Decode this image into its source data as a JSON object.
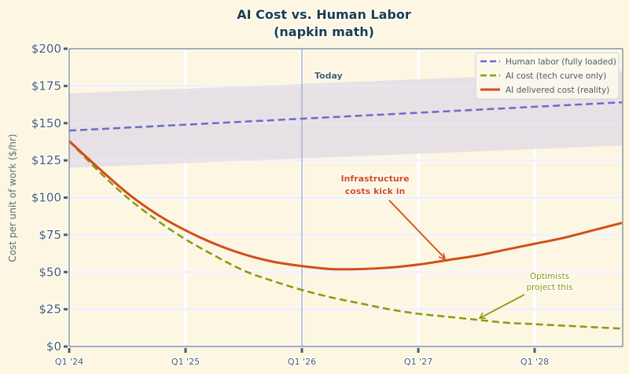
{
  "chart_data": {
    "type": "line",
    "title": "AI Cost vs. Human Labor",
    "subtitle": "(napkin math)",
    "xlabel": "",
    "ylabel": "Cost per unit of work ($/hr)",
    "ylim": [
      0,
      200
    ],
    "yticks": [
      "$0",
      "$25",
      "$50",
      "$75",
      "$100",
      "$125",
      "$150",
      "$175",
      "$200"
    ],
    "ytick_values": [
      0,
      25,
      50,
      75,
      100,
      125,
      150,
      175,
      200
    ],
    "xticks": [
      "Q1 '24",
      "Q1 '25",
      "Q1 '26",
      "Q1 '27",
      "Q1 '28"
    ],
    "x": [
      "Q1 '24",
      "Q2 '24",
      "Q3 '24",
      "Q4 '24",
      "Q1 '25",
      "Q2 '25",
      "Q3 '25",
      "Q4 '25",
      "Q1 '26",
      "Q2 '26",
      "Q3 '26",
      "Q4 '26",
      "Q1 '27",
      "Q2 '27",
      "Q3 '27",
      "Q4 '27",
      "Q1 '28",
      "Q2 '28",
      "Q3 '28",
      "Q4 '28"
    ],
    "grid": true,
    "legend_position": "upper right",
    "series": [
      {
        "name": "Human labor (fully loaded)",
        "style": "dashed",
        "color": "#6b6bc8",
        "values": [
          145,
          146,
          147,
          148,
          149,
          150,
          151,
          152,
          153,
          154,
          155,
          156,
          157,
          158,
          159,
          160,
          161,
          162,
          163,
          164
        ]
      },
      {
        "name": "AI cost (tech curve only)",
        "style": "dashed",
        "color": "#8a9a0a",
        "values": [
          138,
          118,
          100,
          85,
          72,
          61,
          51,
          44,
          38,
          33,
          29,
          25,
          22,
          20,
          18,
          16,
          15,
          14,
          13,
          12
        ]
      },
      {
        "name": "AI delivered cost (reality)",
        "style": "solid",
        "color": "#d24e1a",
        "values": [
          138,
          120,
          103,
          89,
          78,
          69,
          62,
          57,
          54,
          52,
          52,
          53,
          55,
          58,
          61,
          65,
          69,
          73,
          78,
          83
        ]
      }
    ],
    "band": {
      "name": "Human labor range",
      "color": "#e6e1e6",
      "upper": [
        170,
        185
      ],
      "lower": [
        120,
        135
      ]
    },
    "vline": {
      "x": "Q1 '26",
      "label": "Today"
    },
    "annotations": [
      {
        "text_line1": "Infrastructure",
        "text_line2": "costs kick in",
        "color": "#d24e1a",
        "target_x": "Q3 '27",
        "target_y": 57
      },
      {
        "text_line1": "Optimists",
        "text_line2": "project this",
        "color": "#8a9a0a",
        "target_x": "Q3 '27",
        "target_y": 19
      }
    ]
  }
}
